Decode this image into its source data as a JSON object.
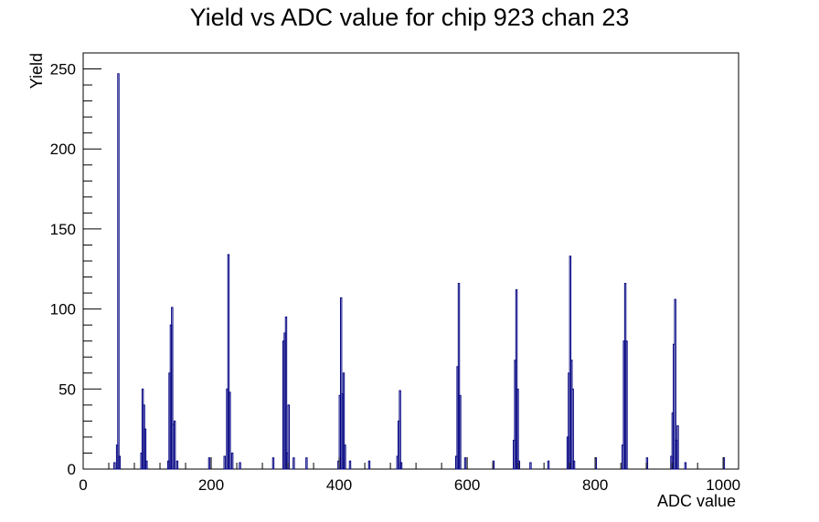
{
  "chart_data": {
    "type": "bar",
    "title": "Yield vs ADC value for chip 923 chan 23",
    "xlabel": "ADC value",
    "ylabel": "Yield",
    "xlim": [
      0,
      1024
    ],
    "ylim": [
      0,
      260
    ],
    "x_ticks": [
      0,
      200,
      400,
      600,
      800,
      1000
    ],
    "y_ticks": [
      0,
      50,
      100,
      150,
      200,
      250
    ],
    "bin_width": 2,
    "grid": false,
    "series": [
      {
        "color": "#000080",
        "points": [
          [
            48,
            4
          ],
          [
            52,
            15
          ],
          [
            54,
            247
          ],
          [
            56,
            8
          ],
          [
            90,
            10
          ],
          [
            92,
            50
          ],
          [
            94,
            40
          ],
          [
            96,
            25
          ],
          [
            98,
            5
          ],
          [
            132,
            5
          ],
          [
            134,
            60
          ],
          [
            136,
            90
          ],
          [
            138,
            101
          ],
          [
            140,
            28
          ],
          [
            142,
            30
          ],
          [
            146,
            5
          ],
          [
            196,
            7
          ],
          [
            220,
            8
          ],
          [
            224,
            50
          ],
          [
            226,
            134
          ],
          [
            228,
            48
          ],
          [
            232,
            10
          ],
          [
            244,
            4
          ],
          [
            296,
            7
          ],
          [
            312,
            80
          ],
          [
            314,
            85
          ],
          [
            316,
            95
          ],
          [
            318,
            10
          ],
          [
            320,
            40
          ],
          [
            328,
            7
          ],
          [
            348,
            7
          ],
          [
            398,
            5
          ],
          [
            400,
            46
          ],
          [
            402,
            107
          ],
          [
            404,
            47
          ],
          [
            406,
            60
          ],
          [
            408,
            15
          ],
          [
            416,
            5
          ],
          [
            446,
            5
          ],
          [
            490,
            8
          ],
          [
            492,
            30
          ],
          [
            494,
            49
          ],
          [
            496,
            4
          ],
          [
            582,
            8
          ],
          [
            584,
            64
          ],
          [
            586,
            116
          ],
          [
            588,
            46
          ],
          [
            596,
            7
          ],
          [
            640,
            5
          ],
          [
            672,
            18
          ],
          [
            674,
            68
          ],
          [
            676,
            112
          ],
          [
            678,
            50
          ],
          [
            680,
            5
          ],
          [
            698,
            4
          ],
          [
            726,
            5
          ],
          [
            756,
            20
          ],
          [
            758,
            60
          ],
          [
            760,
            133
          ],
          [
            762,
            68
          ],
          [
            764,
            50
          ],
          [
            766,
            5
          ],
          [
            800,
            7
          ],
          [
            842,
            15
          ],
          [
            844,
            80
          ],
          [
            846,
            116
          ],
          [
            848,
            80
          ],
          [
            880,
            7
          ],
          [
            918,
            8
          ],
          [
            920,
            35
          ],
          [
            922,
            78
          ],
          [
            924,
            106
          ],
          [
            926,
            18
          ],
          [
            928,
            27
          ],
          [
            940,
            4
          ],
          [
            1000,
            7
          ]
        ]
      }
    ]
  }
}
